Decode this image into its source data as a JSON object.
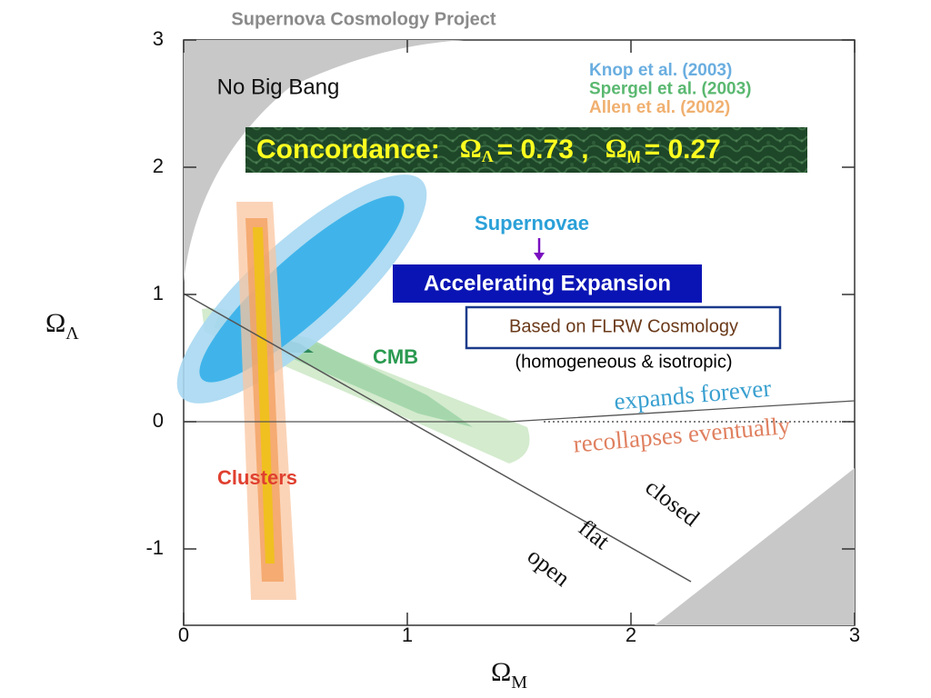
{
  "chart_data": {
    "type": "contour",
    "title": "Supernova Cosmology Project",
    "x_label": {
      "symbol": "Ω",
      "subscript": "M"
    },
    "y_label": {
      "symbol": "Ω",
      "subscript": "Λ"
    },
    "xlim": [
      0,
      3
    ],
    "ylim": [
      -1.6,
      3
    ],
    "xticks": [
      0,
      1,
      2,
      3
    ],
    "yticks": [
      -1,
      0,
      1,
      2,
      3
    ],
    "legend": [
      "Knop et al. (2003)",
      "Spergel et al.  (2003)",
      "Allen et al.  (2002)"
    ],
    "legend_colors": [
      "#6aaee0",
      "#5ab870",
      "#f0b070"
    ],
    "region_label": "No Big Bang",
    "banner": {
      "lead": "Concordance:",
      "symbol1": "Ω",
      "sub1": "Λ",
      "value1": "= 0.73 ,",
      "symbol2": "Ω",
      "sub2": "M",
      "value2": "= 0.27"
    },
    "labels": {
      "supernovae": "Supernovae",
      "accelerating": "Accelerating Expansion",
      "flrw": "Based on FLRW Cosmology",
      "flrw_note": "(homogeneous & isotropic)",
      "cmb": "CMB",
      "clusters": "Clusters",
      "expands": "expands forever",
      "recollapses": "recollapses eventually",
      "closed": "closed",
      "flat": "flat",
      "open": "open"
    }
  }
}
